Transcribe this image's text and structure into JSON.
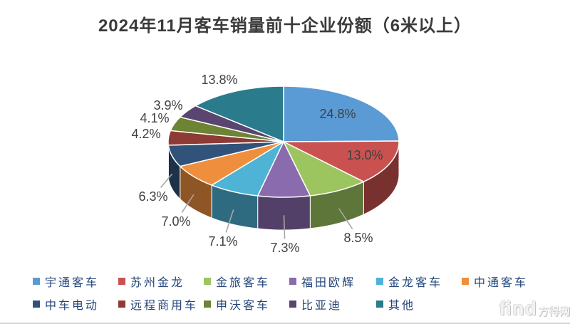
{
  "title": "2024年11月客车销量前十企业份额（6米以上）",
  "watermark": {
    "brand": "find",
    "site": "方得网"
  },
  "chart_data": {
    "type": "pie",
    "style": "3d-pie",
    "title": "2024年11月客车销量前十企业份额（6米以上）",
    "unit": "%",
    "start_angle_deg": 0,
    "direction": "clockwise",
    "legend_position": "bottom",
    "label_color": "#404040",
    "leader_line_color": "#a6a6a6",
    "slices": [
      {
        "label": "宇通客车",
        "value": 24.8,
        "label_text": "24.8%",
        "color": "#5B9BD5",
        "label_pos": [
          474,
          160
        ],
        "label_inside": true,
        "leader": false
      },
      {
        "label": "苏州金龙",
        "value": 13.0,
        "label_text": "13.0%",
        "color": "#C95250",
        "label_pos": [
          512,
          218
        ],
        "label_inside": true,
        "leader": false
      },
      {
        "label": "金旅客车",
        "value": 8.5,
        "label_text": "8.5%",
        "color": "#9DC55F",
        "label_pos": [
          503,
          334
        ],
        "label_inside": false,
        "leader": true
      },
      {
        "label": "福田欧辉",
        "value": 7.3,
        "label_text": "7.3%",
        "color": "#8A6BAD",
        "label_pos": [
          400,
          348
        ],
        "label_inside": false,
        "leader": true
      },
      {
        "label": "金龙客车",
        "value": 7.1,
        "label_text": "7.1%",
        "color": "#4FB3D6",
        "label_pos": [
          313,
          339
        ],
        "label_inside": false,
        "leader": true
      },
      {
        "label": "中通客车",
        "value": 7.0,
        "label_text": "7.0%",
        "color": "#EF8F3E",
        "label_pos": [
          247,
          311
        ],
        "label_inside": false,
        "leader": true
      },
      {
        "label": "中车电动",
        "value": 6.3,
        "label_text": "6.3%",
        "color": "#315379",
        "label_pos": [
          215,
          276
        ],
        "label_inside": false,
        "leader": true
      },
      {
        "label": "远程商用车",
        "value": 4.2,
        "label_text": "4.2%",
        "color": "#8E3A35",
        "label_pos": [
          205,
          188
        ],
        "label_inside": false,
        "leader": false
      },
      {
        "label": "申沃客车",
        "value": 4.1,
        "label_text": "4.1%",
        "color": "#6C8433",
        "label_pos": [
          217,
          166
        ],
        "label_inside": false,
        "leader": false
      },
      {
        "label": "比亚迪",
        "value": 3.9,
        "label_text": "3.9%",
        "color": "#5A4570",
        "label_pos": [
          236,
          148
        ],
        "label_inside": false,
        "leader": false
      },
      {
        "label": "其他",
        "value": 13.8,
        "label_text": "13.8%",
        "color": "#2A7B8C",
        "label_pos": [
          308,
          112
        ],
        "label_inside": false,
        "leader": false
      }
    ],
    "legend_rows": [
      [
        0,
        1,
        2,
        3,
        4,
        5
      ],
      [
        6,
        7,
        8,
        9,
        10
      ]
    ]
  }
}
